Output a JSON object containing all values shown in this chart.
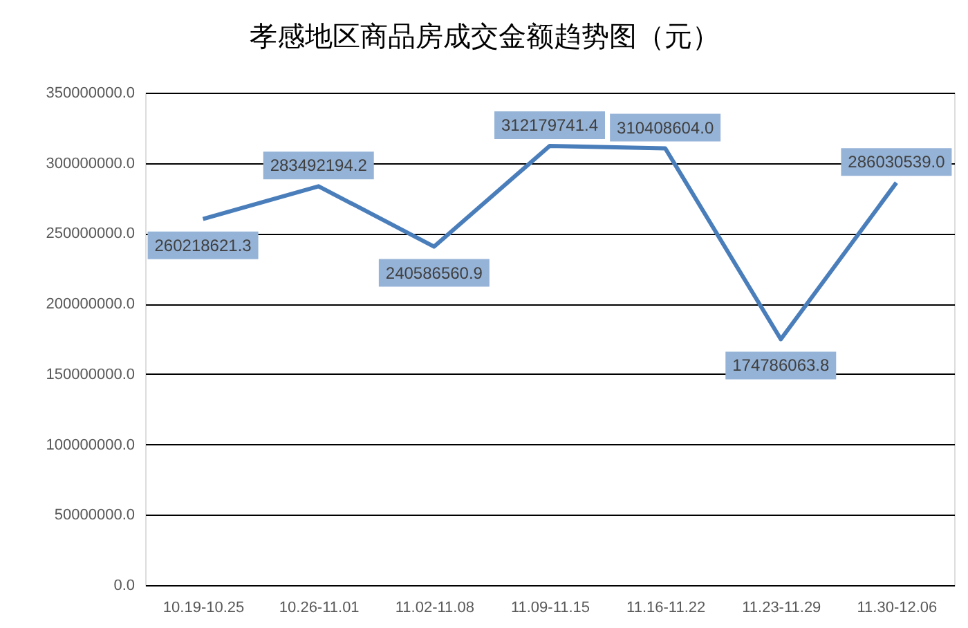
{
  "chart_data": {
    "type": "line",
    "title": "孝感地区商品房成交金额趋势图（元）",
    "categories": [
      "10.19-10.25",
      "10.26-11.01",
      "11.02-11.08",
      "11.09-11.15",
      "11.16-11.22",
      "11.23-11.29",
      "11.30-12.06"
    ],
    "values": [
      260218621.3,
      283492194.2,
      240586560.9,
      312179741.4,
      310408604.0,
      174786063.8,
      286030539.0
    ],
    "value_labels": [
      "260218621.3",
      "283492194.2",
      "240586560.9",
      "312179741.4",
      "310408604.0",
      "174786063.8",
      "286030539.0"
    ],
    "color": "#4a7ebb",
    "ylim": [
      0,
      350000000
    ],
    "yticks": [
      {
        "value": 0,
        "label": "0.0"
      },
      {
        "value": 50000000,
        "label": "50000000.0"
      },
      {
        "value": 100000000,
        "label": "100000000.0"
      },
      {
        "value": 150000000,
        "label": "150000000.0"
      },
      {
        "value": 200000000,
        "label": "200000000.0"
      },
      {
        "value": 250000000,
        "label": "250000000.0"
      },
      {
        "value": 300000000,
        "label": "300000000.0"
      },
      {
        "value": 350000000,
        "label": "350000000.0"
      }
    ],
    "grid": "y"
  }
}
